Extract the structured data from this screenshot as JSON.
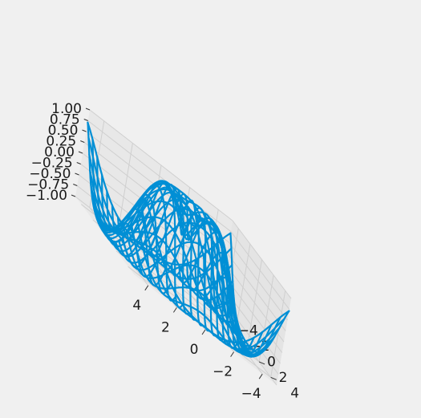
{
  "chart_data": {
    "type": "wireframe",
    "title": "",
    "xlabel": "",
    "ylabel": "",
    "zlabel": "",
    "function": "sin(sqrt(x^2 + y^2))",
    "x_range": [
      -5,
      5
    ],
    "y_range": [
      -5,
      5
    ],
    "z_range": [
      -1,
      1
    ],
    "x_ticks": [
      "−4",
      "−2",
      "0",
      "2",
      "4"
    ],
    "y_ticks": [
      "−4",
      "−2",
      "0",
      "2",
      "4"
    ],
    "z_ticks": [
      "1.00",
      "0.75",
      "0.50",
      "0.25",
      "0.00",
      "−0.25",
      "−0.50",
      "−0.75",
      "−1.00"
    ],
    "grid": true,
    "line_color": "#008fd5",
    "background_color": "#f0f0f0",
    "style": "fivethirtyeight"
  }
}
